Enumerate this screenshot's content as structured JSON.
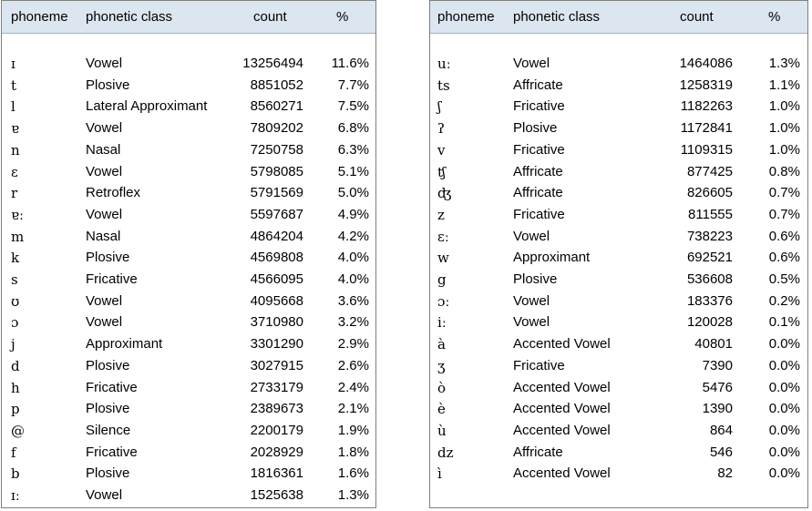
{
  "headers": {
    "phoneme": "phoneme",
    "class": "phonetic class",
    "count": "count",
    "percent": "%"
  },
  "left_rows": [
    {
      "phoneme": "ɪ",
      "class": "Vowel",
      "count": "13256494",
      "percent": "11.6%"
    },
    {
      "phoneme": "t",
      "class": "Plosive",
      "count": "8851052",
      "percent": "7.7%"
    },
    {
      "phoneme": "l",
      "class": "Lateral Approximant",
      "count": "8560271",
      "percent": "7.5%"
    },
    {
      "phoneme": "ɐ",
      "class": "Vowel",
      "count": "7809202",
      "percent": "6.8%"
    },
    {
      "phoneme": "n",
      "class": "Nasal",
      "count": "7250758",
      "percent": "6.3%"
    },
    {
      "phoneme": "ɛ",
      "class": "Vowel",
      "count": "5798085",
      "percent": "5.1%"
    },
    {
      "phoneme": "r",
      "class": "Retroflex",
      "count": "5791569",
      "percent": "5.0%"
    },
    {
      "phoneme": "ɐː",
      "class": "Vowel",
      "count": "5597687",
      "percent": "4.9%"
    },
    {
      "phoneme": "m",
      "class": "Nasal",
      "count": "4864204",
      "percent": "4.2%"
    },
    {
      "phoneme": "k",
      "class": "Plosive",
      "count": "4569808",
      "percent": "4.0%"
    },
    {
      "phoneme": "s",
      "class": "Fricative",
      "count": "4566095",
      "percent": "4.0%"
    },
    {
      "phoneme": "ʊ",
      "class": "Vowel",
      "count": "4095668",
      "percent": "3.6%"
    },
    {
      "phoneme": "ɔ",
      "class": "Vowel",
      "count": "3710980",
      "percent": "3.2%"
    },
    {
      "phoneme": "j",
      "class": "Approximant",
      "count": "3301290",
      "percent": "2.9%"
    },
    {
      "phoneme": "d",
      "class": "Plosive",
      "count": "3027915",
      "percent": "2.6%"
    },
    {
      "phoneme": "h",
      "class": "Fricative",
      "count": "2733179",
      "percent": "2.4%"
    },
    {
      "phoneme": "p",
      "class": "Plosive",
      "count": "2389673",
      "percent": "2.1%"
    },
    {
      "phoneme": "@",
      "class": "Silence",
      "count": "2200179",
      "percent": "1.9%"
    },
    {
      "phoneme": "f",
      "class": "Fricative",
      "count": "2028929",
      "percent": "1.8%"
    },
    {
      "phoneme": "b",
      "class": "Plosive",
      "count": "1816361",
      "percent": "1.6%"
    },
    {
      "phoneme": "ɪː",
      "class": "Vowel",
      "count": "1525638",
      "percent": "1.3%"
    }
  ],
  "right_rows": [
    {
      "phoneme": "uː",
      "class": "Vowel",
      "count": "1464086",
      "percent": "1.3%"
    },
    {
      "phoneme": "ts",
      "class": "Affricate",
      "count": "1258319",
      "percent": "1.1%"
    },
    {
      "phoneme": "ʃ",
      "class": "Fricative",
      "count": "1182263",
      "percent": "1.0%"
    },
    {
      "phoneme": "ʔ",
      "class": "Plosive",
      "count": "1172841",
      "percent": "1.0%"
    },
    {
      "phoneme": "v",
      "class": "Fricative",
      "count": "1109315",
      "percent": "1.0%"
    },
    {
      "phoneme": "ʧ",
      "class": "Affricate",
      "count": "877425",
      "percent": "0.8%"
    },
    {
      "phoneme": "ʤ",
      "class": "Affricate",
      "count": "826605",
      "percent": "0.7%"
    },
    {
      "phoneme": "z",
      "class": "Fricative",
      "count": "811555",
      "percent": "0.7%"
    },
    {
      "phoneme": "ɛː",
      "class": "Vowel",
      "count": "738223",
      "percent": "0.6%"
    },
    {
      "phoneme": "w",
      "class": "Approximant",
      "count": "692521",
      "percent": "0.6%"
    },
    {
      "phoneme": "g",
      "class": "Plosive",
      "count": "536608",
      "percent": "0.5%"
    },
    {
      "phoneme": "ɔː",
      "class": "Vowel",
      "count": "183376",
      "percent": "0.2%"
    },
    {
      "phoneme": "iː",
      "class": "Vowel",
      "count": "120028",
      "percent": "0.1%"
    },
    {
      "phoneme": "à",
      "class": "Accented Vowel",
      "count": "40801",
      "percent": "0.0%"
    },
    {
      "phoneme": "ʒ",
      "class": "Fricative",
      "count": "7390",
      "percent": "0.0%"
    },
    {
      "phoneme": "ò",
      "class": "Accented Vowel",
      "count": "5476",
      "percent": "0.0%"
    },
    {
      "phoneme": "è",
      "class": "Accented Vowel",
      "count": "1390",
      "percent": "0.0%"
    },
    {
      "phoneme": "ù",
      "class": "Accented Vowel",
      "count": "864",
      "percent": "0.0%"
    },
    {
      "phoneme": "dz",
      "class": "Affricate",
      "count": "546",
      "percent": "0.0%"
    },
    {
      "phoneme": "ì",
      "class": "Accented Vowel",
      "count": "82",
      "percent": "0.0%"
    }
  ]
}
